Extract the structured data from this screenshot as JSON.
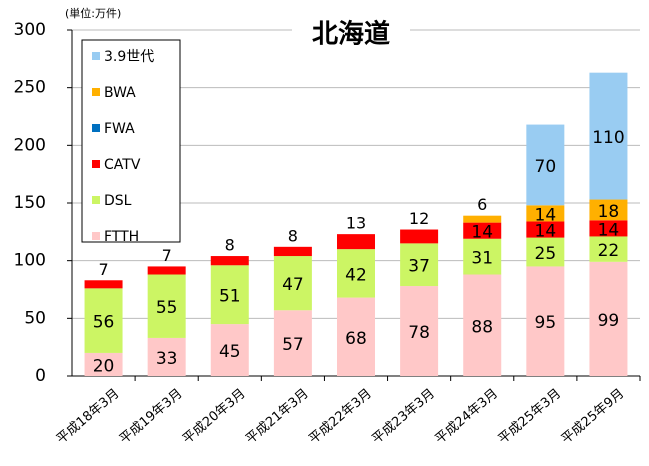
{
  "chart_data": {
    "type": "stacked_bar",
    "title": "北海道",
    "unit_label": "(単位:万件)",
    "categories": [
      "平成18年3月",
      "平成19年3月",
      "平成20年3月",
      "平成21年3月",
      "平成22年3月",
      "平成23年3月",
      "平成24年3月",
      "平成25年3月",
      "平成25年9月"
    ],
    "series": [
      {
        "name": "FTTH",
        "color": "#ffc8c8",
        "values": [
          20,
          33,
          45,
          57,
          68,
          78,
          88,
          95,
          99
        ]
      },
      {
        "name": "DSL",
        "color": "#ccf564",
        "values": [
          56,
          55,
          51,
          47,
          42,
          37,
          31,
          25,
          22
        ]
      },
      {
        "name": "CATV",
        "color": "#ff0000",
        "values": [
          7,
          7,
          8,
          8,
          13,
          12,
          14,
          14,
          14
        ]
      },
      {
        "name": "FWA",
        "color": "#0070c0",
        "values": [
          0,
          0,
          0,
          0,
          0,
          0,
          0,
          0,
          0
        ]
      },
      {
        "name": "BWA",
        "color": "#ffb000",
        "values": [
          0,
          0,
          0,
          0,
          0,
          0,
          6,
          14,
          18
        ]
      },
      {
        "name": "3.9世代",
        "color": "#99ccf2",
        "values": [
          0,
          0,
          0,
          0,
          0,
          0,
          0,
          70,
          110
        ]
      }
    ],
    "ylim": [
      0,
      300
    ],
    "yticks": [
      0,
      50,
      100,
      150,
      200,
      250,
      300
    ],
    "grid": true,
    "legend": "upper left"
  }
}
